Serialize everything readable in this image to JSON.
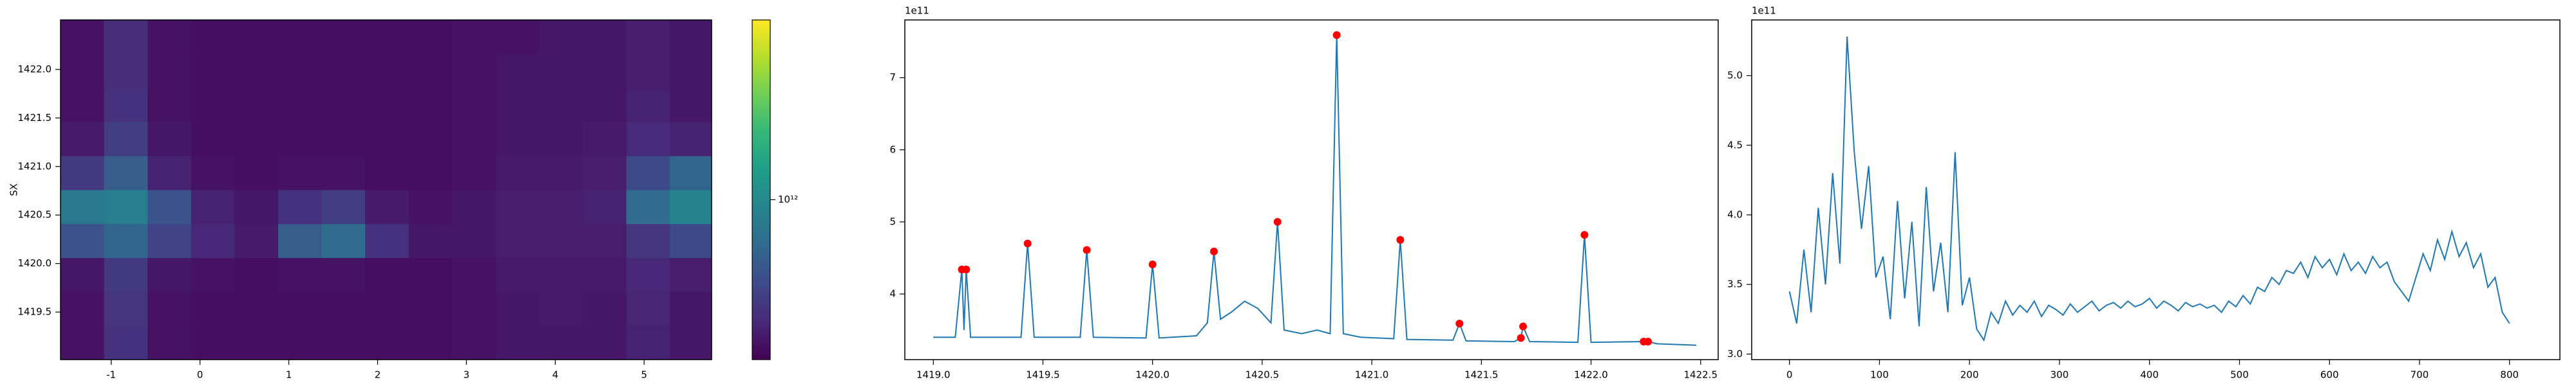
{
  "chart_data": [
    {
      "type": "heatmap",
      "y_label": "SX",
      "xbins": [
        -1.57,
        -1.08,
        -0.59,
        -0.1,
        0.39,
        0.88,
        1.37,
        1.86,
        2.35,
        2.84,
        3.33,
        3.82,
        4.31,
        4.8,
        5.29,
        5.76
      ],
      "ybins": [
        1419.01,
        1419.36,
        1419.71,
        1420.06,
        1420.41,
        1420.76,
        1421.11,
        1421.46,
        1421.81,
        1422.16,
        1422.51
      ],
      "z": [
        [
          360000000000.0,
          450000000000.0,
          360000000000.0,
          350000000000.0,
          350000000000.0,
          350000000000.0,
          350000000000.0,
          350000000000.0,
          350000000000.0,
          360000000000.0,
          370000000000.0,
          370000000000.0,
          370000000000.0,
          400000000000.0,
          370000000000.0
        ],
        [
          360000000000.0,
          460000000000.0,
          360000000000.0,
          350000000000.0,
          350000000000.0,
          350000000000.0,
          350000000000.0,
          350000000000.0,
          350000000000.0,
          360000000000.0,
          370000000000.0,
          380000000000.0,
          370000000000.0,
          410000000000.0,
          370000000000.0
        ],
        [
          370000000000.0,
          480000000000.0,
          370000000000.0,
          360000000000.0,
          350000000000.0,
          360000000000.0,
          360000000000.0,
          350000000000.0,
          350000000000.0,
          360000000000.0,
          380000000000.0,
          380000000000.0,
          380000000000.0,
          420000000000.0,
          390000000000.0
        ],
        [
          600000000000.0,
          700000000000.0,
          520000000000.0,
          420000000000.0,
          380000000000.0,
          650000000000.0,
          750000000000.0,
          450000000000.0,
          370000000000.0,
          370000000000.0,
          390000000000.0,
          390000000000.0,
          390000000000.0,
          460000000000.0,
          550000000000.0
        ],
        [
          850000000000.0,
          900000000000.0,
          600000000000.0,
          400000000000.0,
          370000000000.0,
          450000000000.0,
          500000000000.0,
          380000000000.0,
          360000000000.0,
          370000000000.0,
          390000000000.0,
          390000000000.0,
          400000000000.0,
          750000000000.0,
          950000000000.0
        ],
        [
          480000000000.0,
          650000000000.0,
          400000000000.0,
          360000000000.0,
          350000000000.0,
          360000000000.0,
          360000000000.0,
          350000000000.0,
          350000000000.0,
          360000000000.0,
          380000000000.0,
          380000000000.0,
          390000000000.0,
          550000000000.0,
          700000000000.0
        ],
        [
          380000000000.0,
          500000000000.0,
          370000000000.0,
          350000000000.0,
          350000000000.0,
          350000000000.0,
          350000000000.0,
          350000000000.0,
          350000000000.0,
          360000000000.0,
          370000000000.0,
          370000000000.0,
          380000000000.0,
          430000000000.0,
          400000000000.0
        ],
        [
          360000000000.0,
          450000000000.0,
          360000000000.0,
          350000000000.0,
          350000000000.0,
          350000000000.0,
          350000000000.0,
          350000000000.0,
          350000000000.0,
          360000000000.0,
          370000000000.0,
          370000000000.0,
          370000000000.0,
          400000000000.0,
          370000000000.0
        ],
        [
          360000000000.0,
          440000000000.0,
          360000000000.0,
          350000000000.0,
          350000000000.0,
          350000000000.0,
          350000000000.0,
          350000000000.0,
          350000000000.0,
          360000000000.0,
          370000000000.0,
          370000000000.0,
          370000000000.0,
          390000000000.0,
          370000000000.0
        ],
        [
          360000000000.0,
          440000000000.0,
          360000000000.0,
          350000000000.0,
          350000000000.0,
          350000000000.0,
          350000000000.0,
          350000000000.0,
          350000000000.0,
          360000000000.0,
          360000000000.0,
          370000000000.0,
          370000000000.0,
          390000000000.0,
          370000000000.0
        ]
      ],
      "xlim": [
        -1.57,
        5.76
      ],
      "ylim": [
        1419.01,
        1422.51
      ],
      "xticks": [
        -1,
        0,
        1,
        2,
        3,
        4,
        5
      ],
      "yticks": [
        1419.5,
        {
          "value": 1420,
          "label": "1420.0"
        },
        1420.5,
        {
          "value": 1421,
          "label": "1421.0"
        },
        1421.5,
        {
          "value": 1422,
          "label": "1422.0"
        }
      ],
      "colorbar": {
        "scale": "log",
        "colormap": "viridis",
        "clim": [
          320000000000.0,
          3600000000000.0
        ],
        "ticks": [
          {
            "value": 1000000000000.0,
            "label": "10¹²"
          }
        ]
      }
    },
    {
      "type": "line",
      "offset_label": "1e11",
      "x": [
        1419.0,
        1419.1,
        1419.13,
        1419.14,
        1419.15,
        1419.17,
        1419.4,
        1419.43,
        1419.46,
        1419.67,
        1419.7,
        1419.73,
        1419.97,
        1420.0,
        1420.03,
        1420.2,
        1420.25,
        1420.28,
        1420.31,
        1420.36,
        1420.42,
        1420.48,
        1420.54,
        1420.57,
        1420.6,
        1420.68,
        1420.75,
        1420.81,
        1420.84,
        1420.87,
        1420.95,
        1421.1,
        1421.13,
        1421.16,
        1421.37,
        1421.4,
        1421.43,
        1421.65,
        1421.68,
        1421.69,
        1421.72,
        1421.94,
        1421.97,
        1422.0,
        1422.24,
        1422.26,
        1422.3,
        1422.48
      ],
      "series": [
        {
          "color": "#1f77b4",
          "values": [
            3.4,
            3.4,
            4.34,
            3.5,
            4.34,
            3.4,
            3.4,
            4.7,
            3.4,
            3.4,
            4.61,
            3.4,
            3.39,
            4.41,
            3.39,
            3.42,
            3.6,
            4.59,
            3.65,
            3.75,
            3.9,
            3.8,
            3.6,
            5.0,
            3.5,
            3.45,
            3.5,
            3.45,
            7.59,
            3.45,
            3.4,
            3.38,
            4.75,
            3.37,
            3.36,
            3.59,
            3.35,
            3.34,
            3.39,
            3.55,
            3.34,
            3.33,
            4.82,
            3.33,
            3.34,
            3.34,
            3.31,
            3.29
          ]
        }
      ],
      "markers": {
        "color": "#ff0000",
        "x": [
          1419.13,
          1419.15,
          1419.43,
          1419.7,
          1420.0,
          1420.28,
          1420.57,
          1420.84,
          1421.13,
          1421.4,
          1421.68,
          1421.69,
          1421.97,
          1422.24,
          1422.26
        ],
        "values": [
          4.34,
          4.34,
          4.7,
          4.61,
          4.41,
          4.59,
          5.0,
          7.59,
          4.75,
          3.59,
          3.39,
          3.55,
          4.82,
          3.34,
          3.34
        ]
      },
      "xlim": [
        1418.87,
        1422.58
      ],
      "ylim": [
        3.09,
        7.8
      ],
      "xticks": [
        {
          "value": 1419,
          "label": "1419.0"
        },
        1419.5,
        {
          "value": 1420,
          "label": "1420.0"
        },
        1420.5,
        {
          "value": 1421,
          "label": "1421.0"
        },
        1421.5,
        {
          "value": 1422,
          "label": "1422.0"
        },
        1422.5
      ],
      "yticks": [
        4,
        5,
        6,
        7
      ]
    },
    {
      "type": "line",
      "offset_label": "1e11",
      "x": [
        0,
        8,
        16,
        24,
        32,
        40,
        48,
        56,
        64,
        72,
        80,
        88,
        96,
        104,
        112,
        120,
        128,
        136,
        144,
        152,
        160,
        168,
        176,
        184,
        192,
        200,
        208,
        216,
        224,
        232,
        240,
        248,
        256,
        264,
        272,
        280,
        288,
        296,
        304,
        312,
        320,
        328,
        336,
        344,
        352,
        360,
        368,
        376,
        384,
        392,
        400,
        408,
        416,
        424,
        432,
        440,
        448,
        456,
        464,
        472,
        480,
        488,
        496,
        504,
        512,
        520,
        528,
        536,
        544,
        552,
        560,
        568,
        576,
        584,
        592,
        600,
        608,
        616,
        624,
        632,
        640,
        648,
        656,
        664,
        672,
        680,
        688,
        696,
        704,
        712,
        720,
        728,
        736,
        744,
        752,
        760,
        768,
        776,
        784,
        792,
        800
      ],
      "series": [
        {
          "color": "#1f77b4",
          "values": [
            3.45,
            3.22,
            3.75,
            3.3,
            4.05,
            3.5,
            4.3,
            3.65,
            5.28,
            4.45,
            3.9,
            4.35,
            3.55,
            3.7,
            3.25,
            4.1,
            3.4,
            3.95,
            3.2,
            4.2,
            3.45,
            3.8,
            3.3,
            4.45,
            3.35,
            3.55,
            3.18,
            3.1,
            3.3,
            3.22,
            3.38,
            3.28,
            3.35,
            3.3,
            3.38,
            3.27,
            3.35,
            3.32,
            3.28,
            3.36,
            3.3,
            3.34,
            3.38,
            3.31,
            3.35,
            3.37,
            3.33,
            3.38,
            3.34,
            3.36,
            3.4,
            3.33,
            3.38,
            3.35,
            3.31,
            3.37,
            3.34,
            3.36,
            3.33,
            3.35,
            3.3,
            3.38,
            3.34,
            3.42,
            3.36,
            3.48,
            3.45,
            3.55,
            3.5,
            3.6,
            3.58,
            3.66,
            3.55,
            3.7,
            3.62,
            3.68,
            3.57,
            3.72,
            3.6,
            3.66,
            3.58,
            3.7,
            3.62,
            3.66,
            3.52,
            3.45,
            3.38,
            3.55,
            3.72,
            3.6,
            3.82,
            3.68,
            3.88,
            3.7,
            3.8,
            3.62,
            3.72,
            3.48,
            3.55,
            3.3,
            3.22
          ]
        }
      ],
      "xlim": [
        -42,
        856
      ],
      "ylim": [
        2.96,
        5.4
      ],
      "xticks": [
        0,
        100,
        200,
        300,
        400,
        500,
        600,
        700,
        800
      ],
      "yticks": [
        {
          "value": 3,
          "label": "3.0"
        },
        3.5,
        {
          "value": 4,
          "label": "4.0"
        },
        4.5,
        {
          "value": 5,
          "label": "5.0"
        }
      ]
    }
  ]
}
